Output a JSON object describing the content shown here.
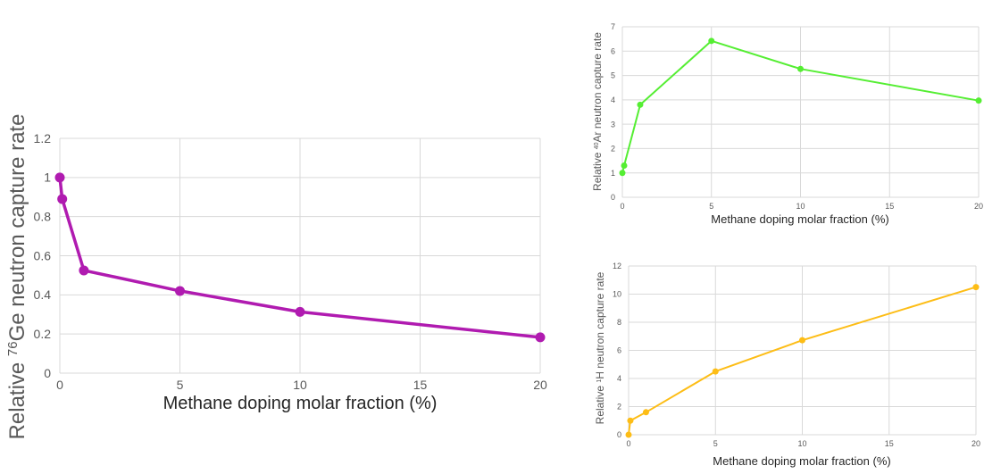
{
  "chart_data": [
    {
      "id": "ge",
      "type": "line",
      "title": "",
      "xlabel": "Methane doping molar fraction (%)",
      "ylabel_prefix": "Relative ",
      "ylabel_sup": "76",
      "ylabel_suffix": "Ge neutron capture rate",
      "xlim": [
        0,
        20
      ],
      "ylim": [
        0,
        1.2
      ],
      "xticks": [
        0,
        5,
        10,
        15,
        20
      ],
      "yticks": [
        0,
        0.2,
        0.4,
        0.6,
        0.8,
        1,
        1.2
      ],
      "ytick_labels": [
        "0",
        "0.2",
        "0.4",
        "0.6",
        "0.8",
        "1",
        "1.2"
      ],
      "grid": true,
      "color": "#b01bb0",
      "series": [
        {
          "x": [
            0,
            0.1,
            1,
            5,
            10,
            20
          ],
          "y": [
            1.0,
            0.89,
            0.525,
            0.42,
            0.313,
            0.183
          ]
        }
      ]
    },
    {
      "id": "ar",
      "type": "line",
      "title": "",
      "xlabel": "Methane doping molar fraction (%)",
      "ylabel_prefix": "Relative ",
      "ylabel_sup": "40",
      "ylabel_suffix": "Ar neutron capture rate",
      "xlim": [
        0,
        20
      ],
      "ylim": [
        0,
        7
      ],
      "xticks": [
        0,
        5,
        10,
        15,
        20
      ],
      "yticks": [
        0,
        1,
        2,
        3,
        4,
        5,
        6,
        7
      ],
      "ytick_labels": [
        "0",
        "1",
        "2",
        "3",
        "4",
        "5",
        "6",
        "7"
      ],
      "grid": true,
      "color": "#55ee33",
      "series": [
        {
          "x": [
            0,
            0.1,
            1,
            5,
            10,
            20
          ],
          "y": [
            1.0,
            1.3,
            3.8,
            6.42,
            5.27,
            3.97
          ]
        }
      ]
    },
    {
      "id": "h",
      "type": "line",
      "title": "",
      "xlabel": "Methane doping molar fraction (%)",
      "ylabel_prefix": "Relative  ",
      "ylabel_sup": "1",
      "ylabel_suffix": "H  neutron capture rate",
      "xlim": [
        0,
        20
      ],
      "ylim": [
        0,
        12
      ],
      "xticks": [
        0,
        5,
        10,
        15,
        20
      ],
      "yticks": [
        0,
        2,
        4,
        6,
        8,
        10,
        12
      ],
      "ytick_labels": [
        "0",
        "2",
        "4",
        "6",
        "8",
        "10",
        "12"
      ],
      "grid": true,
      "color": "#fdbd16",
      "series": [
        {
          "x": [
            0,
            0.1,
            1,
            5,
            10,
            20
          ],
          "y": [
            0.0,
            1.0,
            1.6,
            4.5,
            6.72,
            10.5
          ]
        }
      ]
    }
  ]
}
